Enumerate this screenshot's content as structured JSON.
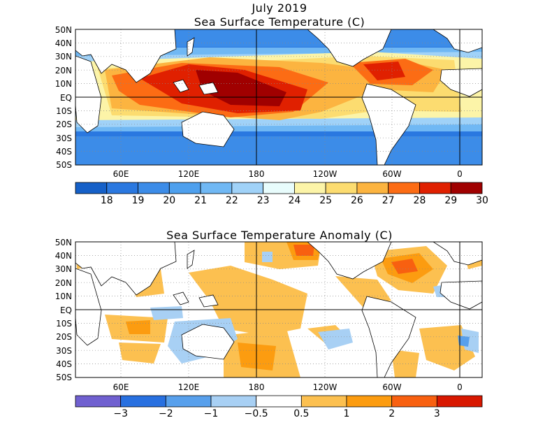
{
  "maps": [
    {
      "title_line1": "July 2019",
      "title_line2": "Sea Surface Temperature (C)",
      "lat_labels": [
        "50N",
        "40N",
        "30N",
        "20N",
        "10N",
        "EQ",
        "10S",
        "20S",
        "30S",
        "40S",
        "50S"
      ],
      "lon_labels": [
        "60E",
        "120E",
        "180",
        "120W",
        "60W",
        "0"
      ],
      "colorbar": {
        "colors": [
          "#1560c8",
          "#2a78e0",
          "#3c8ce8",
          "#4ea0ee",
          "#70b8f4",
          "#a0d2f8",
          "#e8fcfc",
          "#fcf4a8",
          "#fcdc70",
          "#fcb440",
          "#fc6c14",
          "#e02000",
          "#a00000"
        ],
        "labels": [
          "18",
          "19",
          "20",
          "21",
          "22",
          "23",
          "24",
          "25",
          "26",
          "27",
          "28",
          "29",
          "30"
        ]
      }
    },
    {
      "title_line2": "Sea Surface Temperature Anomaly (C)",
      "lat_labels": [
        "50N",
        "40N",
        "30N",
        "20N",
        "10N",
        "EQ",
        "10S",
        "20S",
        "30S",
        "40S",
        "50S"
      ],
      "lon_labels": [
        "60E",
        "120E",
        "180",
        "120W",
        "60W",
        "0"
      ],
      "colorbar": {
        "colors": [
          "#7060d0",
          "#2870e0",
          "#58a0ec",
          "#a8d0f4",
          "#ffffff",
          "#fcc050",
          "#fc9c10",
          "#f86010",
          "#d81800"
        ],
        "labels": [
          "−3",
          "−2",
          "−1",
          "−0.5",
          "0.5",
          "1",
          "2",
          "3"
        ]
      }
    }
  ]
}
